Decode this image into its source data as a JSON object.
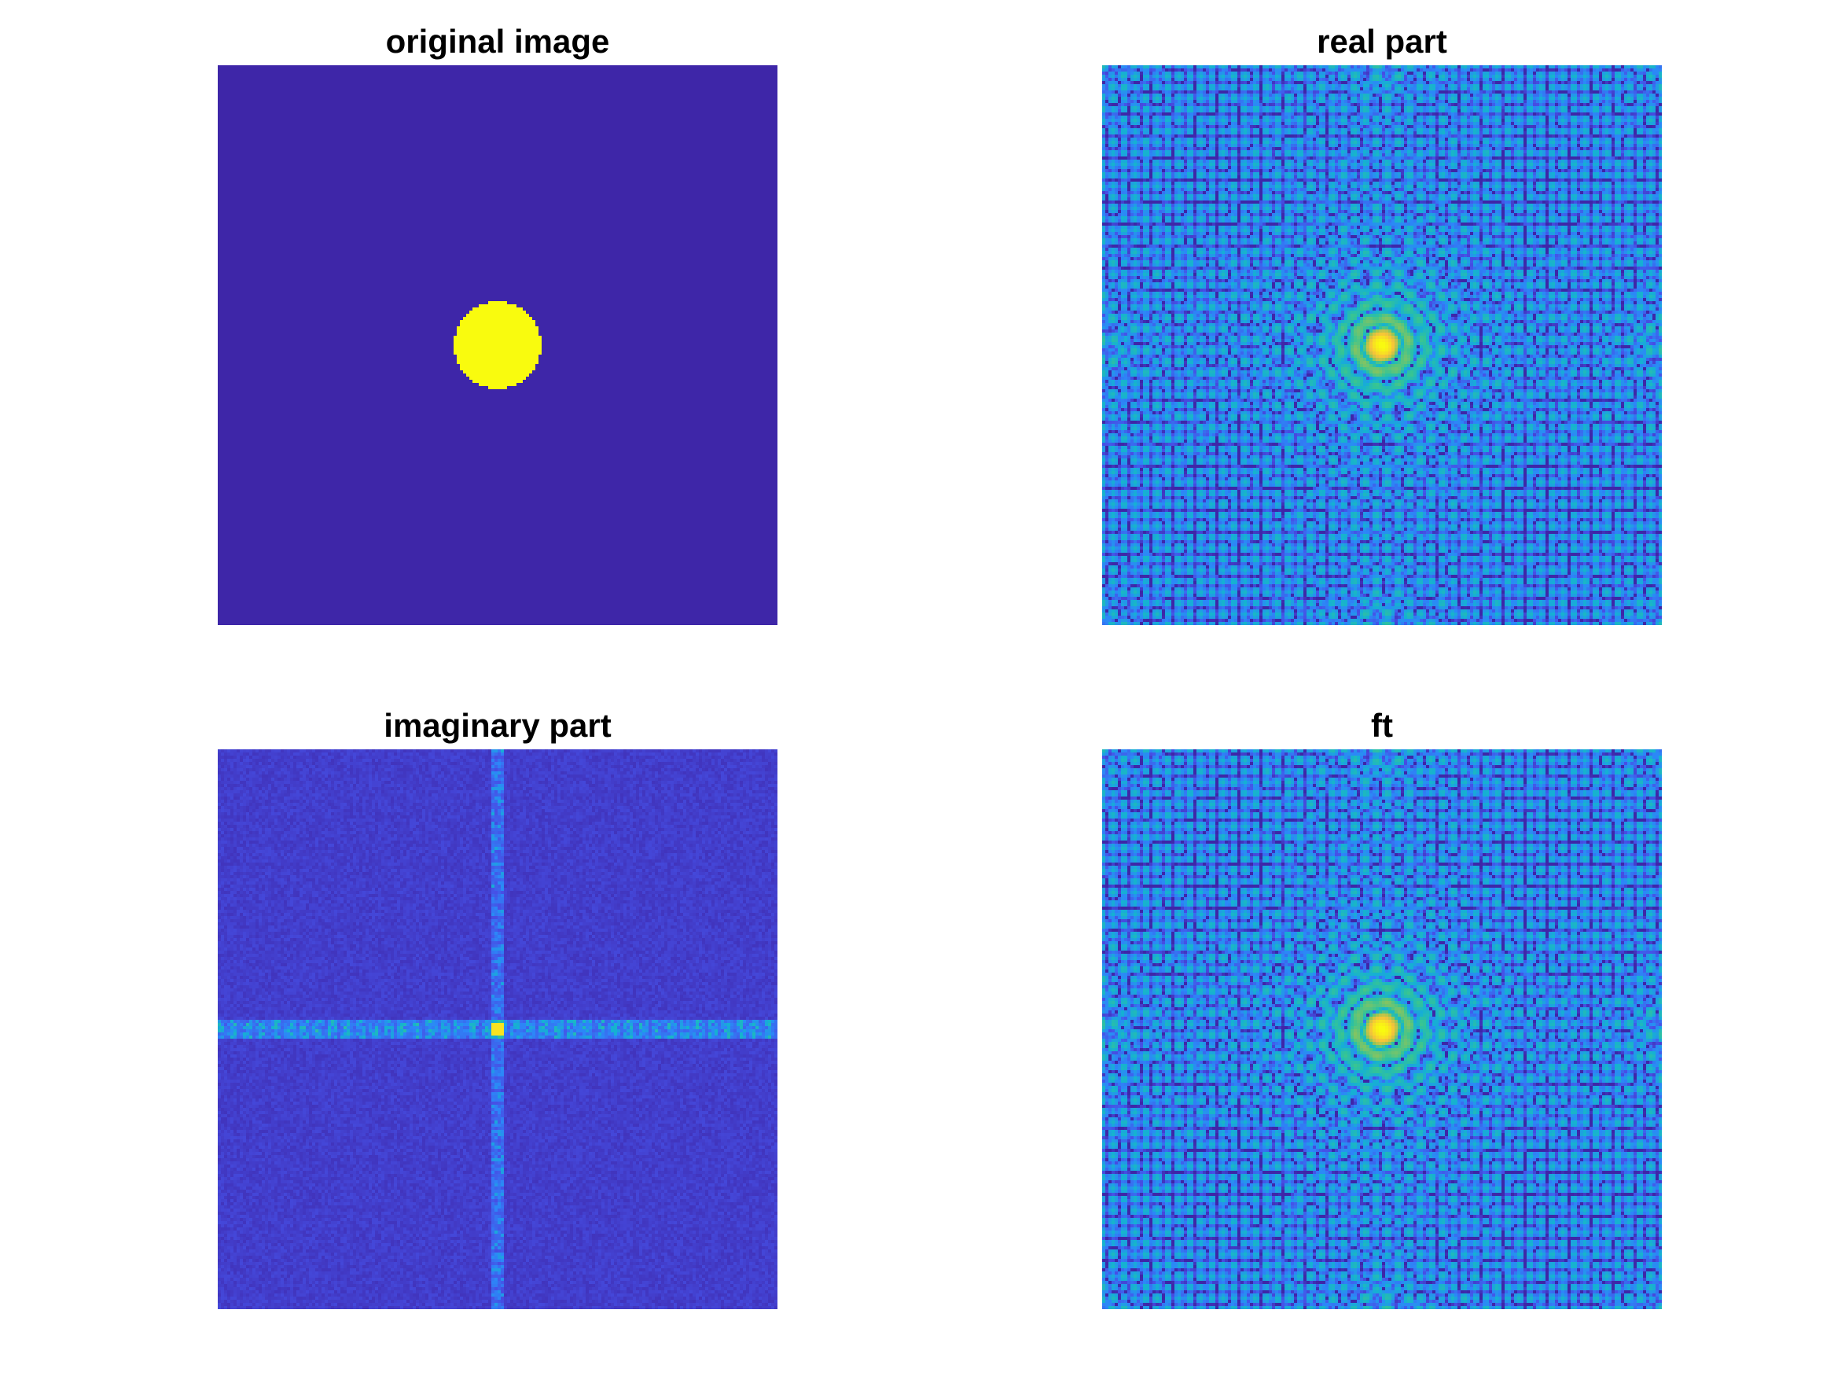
{
  "figure": {
    "panels": [
      {
        "id": "original",
        "title": "original image",
        "kind": "disk"
      },
      {
        "id": "real",
        "title": "real part",
        "kind": "ring-spectrum"
      },
      {
        "id": "imag",
        "title": "imaginary part",
        "kind": "cross-noise"
      },
      {
        "id": "ft",
        "title": "ft",
        "kind": "ring-spectrum"
      }
    ],
    "colormap": "parula",
    "colors": {
      "background": "#ffffff",
      "low": "#3e26a8",
      "high": "#f9fb0e"
    }
  }
}
